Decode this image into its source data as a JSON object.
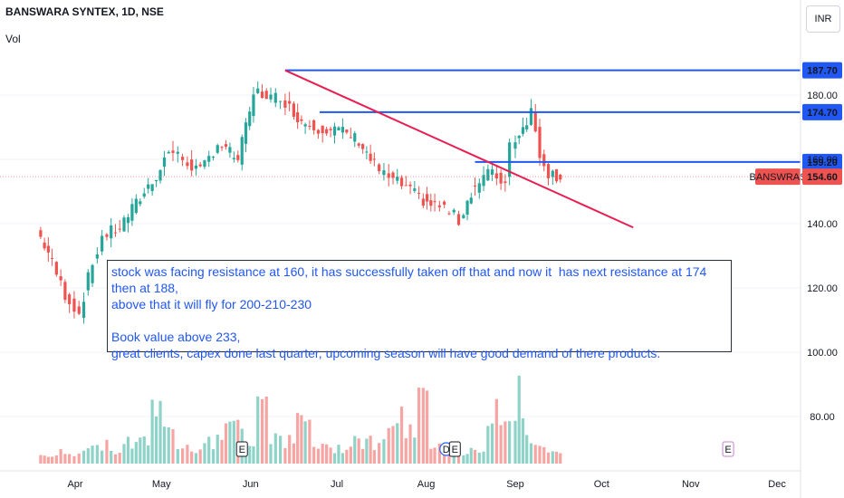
{
  "header": {
    "symbol_line": "BANSWARA SYNTEX, 1D, NSE",
    "volume_label": "Vol",
    "currency": "INR"
  },
  "note_text": "stock was facing resistance at 160, it has successfully taken off that and now it  has next resistance at 174 then at 188,\nabove that it will fly for 200-210-230\n\nBook value above 233,\ngreat clients, capex done last quarter, upcoming season will have good demand of there products.",
  "colors": {
    "up": "#26a69a",
    "down": "#ef5350",
    "vol_up": "#8fd3c8",
    "vol_down": "#f7a5a3",
    "resistance": "#2157f3",
    "trendline": "#e91e50",
    "last_price": "#ef5350"
  },
  "icons": [
    "earnings-marker-icon",
    "dividend-marker-icon"
  ],
  "chart_data": {
    "type": "candlestick",
    "symbol": "BANSWARA SYNTEX",
    "interval": "1D",
    "exchange": "NSE",
    "y_tick_labels": [
      "80.00",
      "100.00",
      "120.00",
      "140.00",
      "160.00",
      "180.00"
    ],
    "x_tick_labels": [
      "Apr",
      "May",
      "Jun",
      "Jul",
      "Aug",
      "Sep",
      "Oct",
      "Nov",
      "Dec"
    ],
    "ylim": [
      70,
      200
    ],
    "price_path": [
      [
        "2023-03-20",
        138
      ],
      [
        "2023-03-24",
        131
      ],
      [
        "2023-03-30",
        118
      ],
      [
        "2023-04-04",
        112
      ],
      [
        "2023-04-07",
        123
      ],
      [
        "2023-04-12",
        136
      ],
      [
        "2023-04-18",
        139
      ],
      [
        "2023-04-25",
        148
      ],
      [
        "2023-05-02",
        157
      ],
      [
        "2023-05-05",
        163
      ],
      [
        "2023-05-10",
        160
      ],
      [
        "2023-05-16",
        156
      ],
      [
        "2023-05-22",
        165
      ],
      [
        "2023-05-29",
        160
      ],
      [
        "2023-06-02",
        175
      ],
      [
        "2023-06-05",
        183
      ],
      [
        "2023-06-08",
        178
      ],
      [
        "2023-06-13",
        180
      ],
      [
        "2023-06-16",
        176
      ],
      [
        "2023-06-20",
        172
      ],
      [
        "2023-06-26",
        170
      ],
      [
        "2023-07-03",
        169
      ],
      [
        "2023-07-10",
        166
      ],
      [
        "2023-07-14",
        160
      ],
      [
        "2023-07-19",
        155
      ],
      [
        "2023-07-25",
        152
      ],
      [
        "2023-07-31",
        148
      ],
      [
        "2023-08-04",
        146
      ],
      [
        "2023-08-09",
        145
      ],
      [
        "2023-08-14",
        141
      ],
      [
        "2023-08-18",
        150
      ],
      [
        "2023-08-24",
        156
      ],
      [
        "2023-08-30",
        153
      ],
      [
        "2023-09-01",
        165
      ],
      [
        "2023-09-05",
        170
      ],
      [
        "2023-09-08",
        175
      ],
      [
        "2023-09-11",
        162
      ],
      [
        "2023-09-14",
        156
      ],
      [
        "2023-09-18",
        154.6
      ]
    ],
    "volume_relative": [
      0.1,
      0.15,
      0.12,
      0.2,
      0.25,
      0.18,
      0.3,
      0.35,
      0.9,
      0.4,
      0.3,
      0.22,
      0.28,
      0.45,
      0.5,
      0.3,
      0.95,
      0.4,
      0.3,
      0.55,
      0.25,
      0.2,
      0.22,
      0.35,
      0.3,
      0.28,
      0.6,
      0.4,
      0.85,
      0.3,
      0.25,
      0.15,
      0.2,
      0.7,
      0.5,
      0.9,
      0.35,
      0.2,
      0.15
    ],
    "horizontal_lines": [
      {
        "label": "187.70",
        "value": 187.7
      },
      {
        "label": "174.70",
        "value": 174.7
      },
      {
        "label": "159.20",
        "value": 159.2
      }
    ],
    "trendline": {
      "from": [
        "2023-06-13",
        187.7
      ],
      "to": [
        "2023-10-12",
        138.8
      ]
    },
    "last_price": {
      "label": "BANSWRAS",
      "value": "154.60"
    },
    "event_markers": [
      {
        "label": "E",
        "date": "2023-05-29"
      },
      {
        "label": "D",
        "date": "2023-08-08"
      },
      {
        "label": "E",
        "date": "2023-08-11"
      },
      {
        "label": "E",
        "date": "2023-11-14"
      }
    ]
  }
}
